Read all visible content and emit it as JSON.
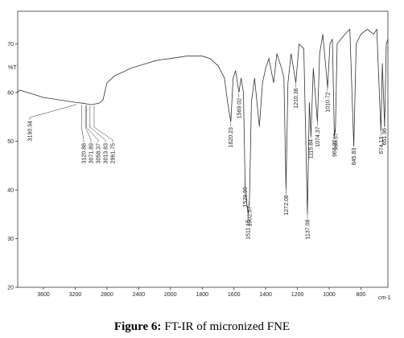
{
  "chart_data": {
    "type": "line",
    "caption_label": "Figure 6:",
    "caption": "FT-IR of micronized FNE",
    "ylabel": "%T",
    "xlabel": "cm-1",
    "xlim": [
      3925,
      630
    ],
    "xaxis_break": 2000,
    "ylim": [
      20,
      76.7
    ],
    "xticks": [
      3600,
      3200,
      2800,
      2400,
      2000,
      1800,
      1600,
      1400,
      1200,
      1000,
      800
    ],
    "yticks": [
      20,
      30,
      40,
      50,
      60,
      70
    ],
    "series": [
      {
        "color": "#333333",
        "x": [
          3925,
          3900,
          3800,
          3700,
          3600,
          3400,
          3200,
          3100,
          3000,
          2900,
          2850,
          2800,
          2700,
          2600,
          2500,
          2400,
          2300,
          2200,
          2100,
          2000,
          1900,
          1800,
          1750,
          1700,
          1660,
          1640,
          1620,
          1605,
          1590,
          1569,
          1555,
          1540,
          1529,
          1511,
          1502,
          1490,
          1470,
          1440,
          1420,
          1400,
          1380,
          1350,
          1330,
          1300,
          1285,
          1272,
          1260,
          1240,
          1210,
          1190,
          1160,
          1137,
          1125,
          1115,
          1100,
          1074,
          1060,
          1040,
          1010,
          995,
          980,
          967,
          960,
          950,
          900,
          870,
          845,
          830,
          800,
          760,
          720,
          700,
          674,
          665,
          651,
          640,
          630
        ],
        "values": [
          60,
          60.5,
          60,
          59.5,
          59,
          58.5,
          58,
          57.8,
          57.5,
          57.8,
          58.5,
          62,
          63.5,
          64.2,
          65,
          65.5,
          66,
          66.5,
          66.8,
          67,
          67.5,
          67.5,
          67,
          65.5,
          63,
          58,
          54,
          63,
          64.5,
          60,
          63,
          60,
          40,
          35,
          38,
          58,
          63,
          53,
          62,
          65,
          67,
          62,
          68,
          65,
          63,
          40,
          62,
          68,
          62,
          70,
          69,
          35,
          58,
          51,
          65,
          54,
          68,
          72,
          61,
          70,
          71,
          51,
          53,
          70,
          72,
          73,
          49,
          70,
          72,
          73,
          72,
          73,
          52,
          66,
          53,
          70,
          71
        ]
      }
    ],
    "peaks": [
      3190.94,
      3120.88,
      3071.89,
      3058.37,
      3013.83,
      2961.75,
      1620.23,
      1569.02,
      1529.99,
      1511.15,
      1502.57,
      1272.08,
      1210.36,
      1137.08,
      1115.84,
      1074.37,
      1010.72,
      967.32,
      960.57,
      845.83,
      674.13,
      651.96
    ]
  }
}
